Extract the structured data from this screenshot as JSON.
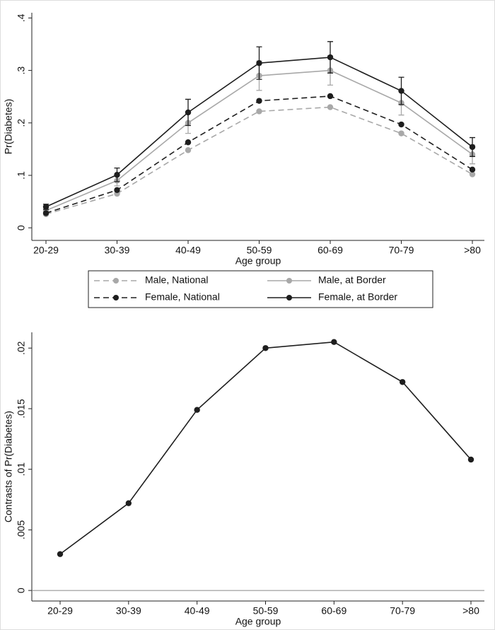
{
  "chart_data": [
    {
      "type": "line",
      "x_label": "Age group",
      "y_label": "Pr(Diabetes)",
      "categories": [
        "20-29",
        "30-39",
        "40-49",
        "50-59",
        "60-69",
        "70-79",
        ">80"
      ],
      "series": [
        {
          "name": "Male, National",
          "color": "#a8a8a8",
          "line_style": "dashed",
          "values": [
            0.026,
            0.065,
            0.148,
            0.222,
            0.23,
            0.18,
            0.102
          ]
        },
        {
          "name": "Male, at Border",
          "color": "#a8a8a8",
          "line_style": "solid",
          "values": [
            0.033,
            0.09,
            0.2,
            0.29,
            0.3,
            0.238,
            0.14
          ],
          "errors": [
            0.004,
            0.01,
            0.02,
            0.028,
            0.028,
            0.023,
            0.018
          ]
        },
        {
          "name": "Female, National",
          "color": "#1e1e1e",
          "line_style": "dashed",
          "values": [
            0.028,
            0.072,
            0.163,
            0.242,
            0.251,
            0.197,
            0.111
          ]
        },
        {
          "name": "Female, at Border",
          "color": "#1e1e1e",
          "line_style": "solid",
          "values": [
            0.04,
            0.101,
            0.22,
            0.314,
            0.325,
            0.261,
            0.154
          ],
          "errors": [
            0.005,
            0.013,
            0.025,
            0.031,
            0.03,
            0.026,
            0.018
          ]
        }
      ],
      "ylim": [
        -0.024,
        0.41
      ],
      "yticks": [
        0,
        {
          "value": 0.1,
          "label": ".1"
        },
        {
          "value": 0.2,
          "label": ".2"
        },
        {
          "value": 0.3,
          "label": ".3"
        },
        {
          "value": 0.4,
          "label": ".4"
        }
      ],
      "legend": "bottom"
    },
    {
      "type": "line",
      "x_label": "Age group",
      "y_label": "Contrasts of Pr(Diabetes)",
      "categories": [
        "20-29",
        "30-39",
        "40-49",
        "50-59",
        "60-69",
        "70-79",
        ">80"
      ],
      "series": [
        {
          "color": "#1e1e1e",
          "line_style": "solid",
          "values": [
            0.003,
            0.0072,
            0.0149,
            0.02,
            0.0205,
            0.0172,
            0.0108
          ]
        }
      ],
      "ylim": [
        -0.00087,
        0.0213
      ],
      "yticks": [
        0,
        {
          "value": 0.005,
          "label": ".005"
        },
        {
          "value": 0.01,
          "label": ".01"
        },
        {
          "value": 0.015,
          "label": ".015"
        },
        {
          "value": 0.02,
          "label": ".02"
        }
      ],
      "reference_line": 0
    }
  ]
}
